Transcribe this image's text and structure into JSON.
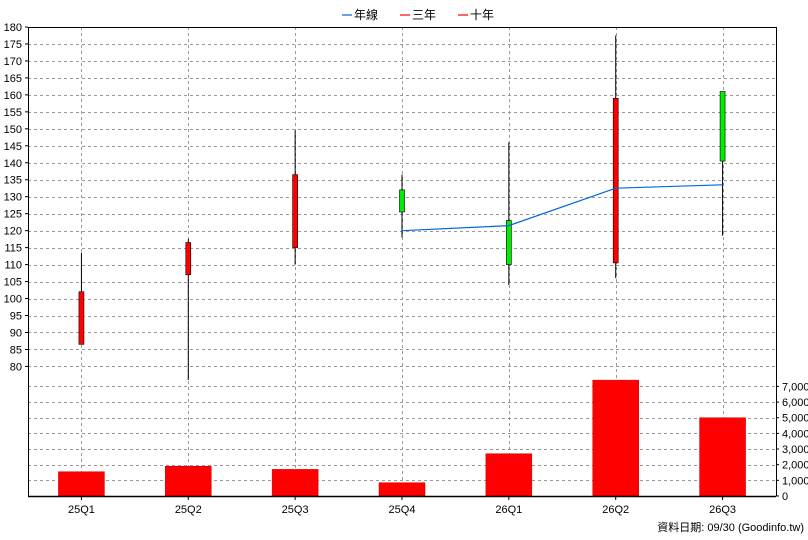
{
  "chart_data": {
    "type": "candlestick",
    "legend": {
      "placement": "top-center",
      "items": [
        {
          "name": "年線",
          "color": "#0066dd"
        },
        {
          "name": "三年",
          "color": "#ff0000"
        },
        {
          "name": "十年",
          "color": "#ff0000"
        }
      ]
    },
    "categories": [
      "25Q1",
      "25Q2",
      "25Q3",
      "25Q4",
      "26Q1",
      "26Q2",
      "26Q3"
    ],
    "price_axis": {
      "ylim": [
        76,
        180
      ],
      "ticks": [
        80,
        85,
        90,
        95,
        100,
        105,
        110,
        115,
        120,
        125,
        130,
        135,
        140,
        145,
        150,
        155,
        160,
        165,
        170,
        175,
        180
      ],
      "side": "left"
    },
    "volume_axis": {
      "ylim": [
        0,
        7600
      ],
      "ticks": [
        0,
        1000,
        2000,
        3000,
        4000,
        5000,
        6000,
        7000
      ],
      "tick_labels": [
        "0",
        "1,000",
        "2,000",
        "3,000",
        "4,000",
        "5,000",
        "6,000",
        "7,000"
      ],
      "side": "right"
    },
    "candles": [
      {
        "open": 86.5,
        "high": 113.5,
        "low": 86.5,
        "close": 102,
        "color": "#ff0000"
      },
      {
        "open": 107,
        "high": 117.5,
        "low": 76,
        "close": 116.5,
        "color": "#ff0000"
      },
      {
        "open": 115,
        "high": 149.5,
        "low": 110,
        "close": 136.5,
        "color": "#ff0000"
      },
      {
        "open": 132,
        "high": 136.5,
        "low": 118,
        "close": 125.5,
        "color": "#00ee00"
      },
      {
        "open": 123,
        "high": 146,
        "low": 104,
        "close": 110,
        "color": "#00ee00"
      },
      {
        "open": 110.5,
        "high": 177.5,
        "low": 106,
        "close": 159,
        "color": "#ff0000"
      },
      {
        "open": 161,
        "high": 161,
        "low": 118.5,
        "close": 140.5,
        "color": "#00ee00"
      }
    ],
    "series": [
      {
        "name": "年線",
        "color": "#0066dd",
        "values": [
          null,
          null,
          null,
          120,
          121.5,
          132.5,
          133.5
        ]
      }
    ],
    "volumes": [
      1550,
      1900,
      1700,
      850,
      2700,
      7400,
      5000
    ],
    "volume_color": "#ff0000",
    "grid": true
  },
  "footer": {
    "source_note": "資料日期: 09/30  (Goodinfo.tw)"
  },
  "colors": {
    "grid": "#999999",
    "axis": "#000000",
    "background": "#ffffff"
  }
}
